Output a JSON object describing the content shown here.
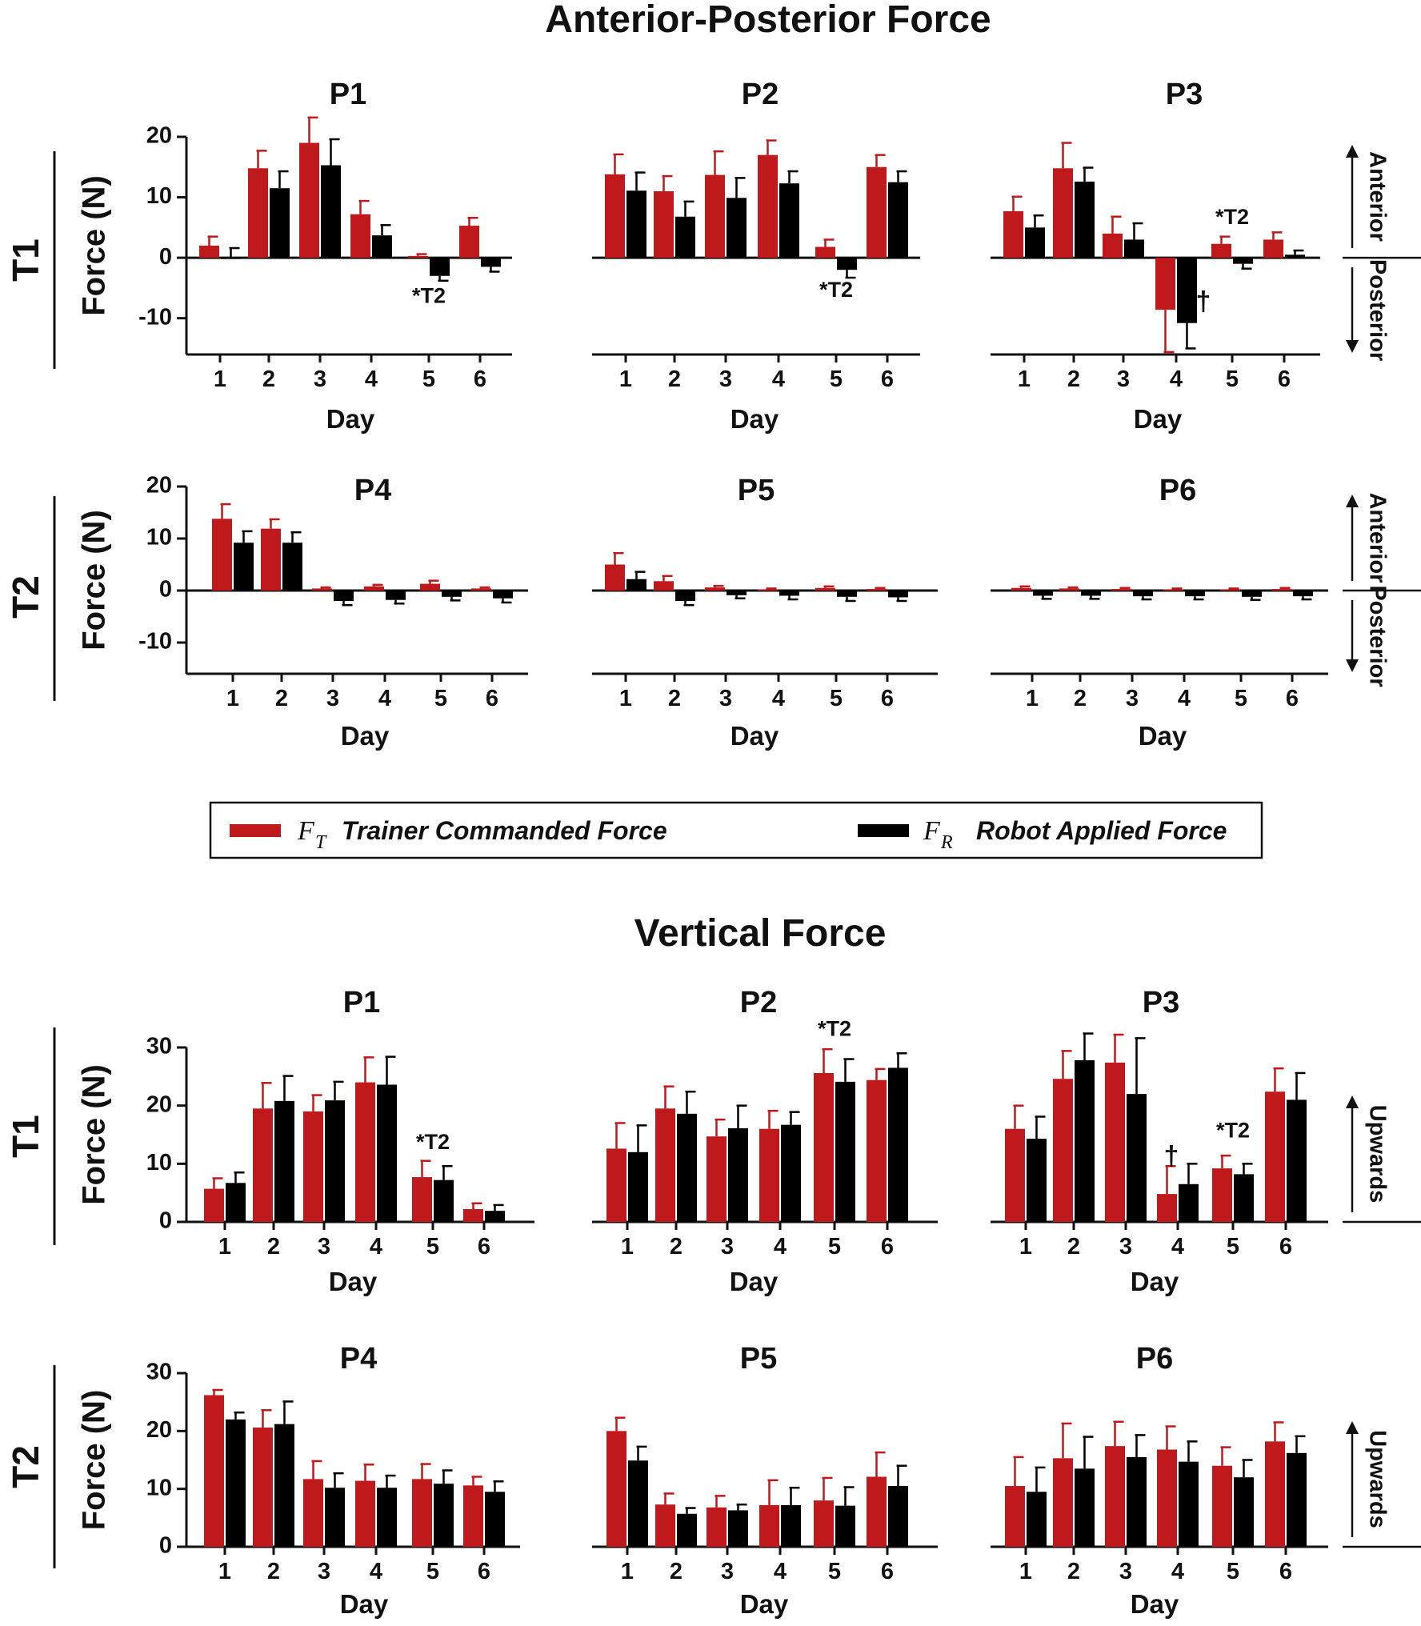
{
  "chart_data": {
    "type": "bar",
    "colors": {
      "trainer": "#c0191b",
      "robot": "#000000",
      "axis": "#111111"
    },
    "legend": {
      "trainer_symbol": "F",
      "trainer_sub": "T",
      "trainer_label": "Trainer Commanded Force",
      "robot_symbol": "F",
      "robot_sub": "R",
      "robot_label": "Robot Applied Force"
    },
    "sections": [
      {
        "title": "Anterior-Posterior Force",
        "ylim": [
          -16,
          20
        ],
        "yticks": [
          20,
          10,
          0,
          -10
        ],
        "ylabel": "Force (N)",
        "xlabel": "Day",
        "categories": [
          "1",
          "2",
          "3",
          "4",
          "5",
          "6"
        ],
        "rows": [
          {
            "label": "T1",
            "direction_up": "Anterior",
            "direction_down": "Posterior",
            "panels": [
              {
                "title": "P1",
                "trainer": [
                  2.0,
                  14.8,
                  19.0,
                  7.2,
                  0.3,
                  5.3
                ],
                "trainer_err": [
                  1.5,
                  2.9,
                  4.2,
                  2.2,
                  0.3,
                  1.3
                ],
                "robot": [
                  0.0,
                  11.5,
                  15.3,
                  3.7,
                  -3.0,
                  -1.5
                ],
                "robot_err": [
                  1.6,
                  2.8,
                  4.3,
                  1.7,
                  0.8,
                  0.8
                ],
                "annotations": [
                  {
                    "day": 5,
                    "text": "*T2",
                    "value": -6.5
                  }
                ]
              },
              {
                "title": "P2",
                "trainer": [
                  13.8,
                  11.0,
                  13.7,
                  17.0,
                  1.8,
                  15.0
                ],
                "trainer_err": [
                  3.3,
                  2.5,
                  3.9,
                  2.4,
                  1.2,
                  2.0
                ],
                "robot": [
                  11.1,
                  6.8,
                  9.9,
                  12.3,
                  -2.0,
                  12.5
                ],
                "robot_err": [
                  3.0,
                  2.5,
                  3.3,
                  2.0,
                  1.3,
                  1.8
                ],
                "annotations": [
                  {
                    "day": 5,
                    "text": "*T2",
                    "value": -5.5
                  }
                ]
              },
              {
                "title": "P3",
                "trainer": [
                  7.7,
                  14.8,
                  4.0,
                  -8.6,
                  2.3,
                  3.0
                ],
                "trainer_err": [
                  2.4,
                  4.2,
                  2.8,
                  7.0,
                  1.2,
                  1.2
                ],
                "robot": [
                  5.0,
                  12.6,
                  3.0,
                  -10.8,
                  -1.0,
                  0.5
                ],
                "robot_err": [
                  2.0,
                  2.3,
                  2.7,
                  4.2,
                  0.8,
                  0.7
                ],
                "annotations": [
                  {
                    "day": 5,
                    "text": "*T2",
                    "value": 6.5
                  },
                  {
                    "day": 4,
                    "text": "†",
                    "value": -7.5
                  }
                ]
              }
            ]
          },
          {
            "label": "T2",
            "direction_up": "Anterior",
            "direction_down": "Posterior",
            "panels": [
              {
                "title": "P4",
                "trainer": [
                  13.8,
                  11.9,
                  0.4,
                  0.8,
                  1.3,
                  0.4
                ],
                "trainer_err": [
                  2.8,
                  1.8,
                  0.2,
                  0.3,
                  0.6,
                  0.2
                ],
                "robot": [
                  9.2,
                  9.2,
                  -2.0,
                  -1.8,
                  -1.2,
                  -1.5
                ],
                "robot_err": [
                  2.2,
                  2.0,
                  0.8,
                  0.7,
                  0.7,
                  0.8
                ],
                "annotations": []
              },
              {
                "title": "P5",
                "trainer": [
                  5.0,
                  1.8,
                  0.6,
                  0.2,
                  0.5,
                  0.3
                ],
                "trainer_err": [
                  2.2,
                  1.0,
                  0.3,
                  0.2,
                  0.3,
                  0.2
                ],
                "robot": [
                  2.2,
                  -2.0,
                  -0.9,
                  -1.0,
                  -1.2,
                  -1.3
                ],
                "robot_err": [
                  1.4,
                  0.8,
                  0.6,
                  0.7,
                  0.8,
                  0.7
                ],
                "annotations": []
              },
              {
                "title": "P6",
                "trainer": [
                  0.5,
                  0.4,
                  0.3,
                  0.2,
                  0.2,
                  0.3
                ],
                "trainer_err": [
                  0.3,
                  0.2,
                  0.2,
                  0.2,
                  0.2,
                  0.2
                ],
                "robot": [
                  -1.0,
                  -1.0,
                  -1.1,
                  -1.1,
                  -1.2,
                  -1.1
                ],
                "robot_err": [
                  0.6,
                  0.6,
                  0.6,
                  0.6,
                  0.6,
                  0.6
                ],
                "annotations": []
              }
            ]
          }
        ]
      },
      {
        "title": "Vertical Force",
        "ylim": [
          0,
          30
        ],
        "yticks": [
          30,
          20,
          10,
          0
        ],
        "ylabel": "Force (N)",
        "xlabel": "Day",
        "categories": [
          "1",
          "2",
          "3",
          "4",
          "5",
          "6"
        ],
        "rows": [
          {
            "label": "T1",
            "direction_up": "Upwards",
            "panels": [
              {
                "title": "P1",
                "trainer": [
                  5.7,
                  19.5,
                  19.0,
                  24.0,
                  7.7,
                  2.2
                ],
                "trainer_err": [
                  1.8,
                  4.4,
                  2.8,
                  4.3,
                  2.8,
                  1.0
                ],
                "robot": [
                  6.7,
                  20.8,
                  20.9,
                  23.6,
                  7.2,
                  1.9
                ],
                "robot_err": [
                  1.8,
                  4.3,
                  3.2,
                  4.8,
                  2.4,
                  1.0
                ],
                "annotations": [
                  {
                    "day": 5,
                    "text": "*T2",
                    "value": 13.5
                  }
                ]
              },
              {
                "title": "P2",
                "trainer": [
                  12.6,
                  19.5,
                  14.7,
                  16.0,
                  25.6,
                  24.4
                ],
                "trainer_err": [
                  4.4,
                  3.8,
                  2.9,
                  3.1,
                  4.1,
                  1.9
                ],
                "robot": [
                  12.0,
                  18.6,
                  16.1,
                  16.7,
                  24.1,
                  26.5
                ],
                "robot_err": [
                  4.6,
                  3.8,
                  3.9,
                  2.2,
                  3.9,
                  2.5
                ],
                "annotations": [
                  {
                    "day": 5,
                    "text": "*T2",
                    "value": 33.0
                  }
                ]
              },
              {
                "title": "P3",
                "trainer": [
                  16.0,
                  24.6,
                  27.4,
                  4.8,
                  9.2,
                  22.4
                ],
                "trainer_err": [
                  4.0,
                  4.8,
                  4.8,
                  4.8,
                  2.2,
                  4.0
                ],
                "robot": [
                  14.3,
                  27.8,
                  22.0,
                  6.5,
                  8.2,
                  21.0
                ],
                "robot_err": [
                  3.8,
                  4.6,
                  9.6,
                  3.5,
                  1.8,
                  4.6
                ],
                "annotations": [
                  {
                    "day": 5,
                    "text": "*T2",
                    "value": 15.5
                  },
                  {
                    "day": 4,
                    "text": "†",
                    "value": 11.0
                  }
                ]
              }
            ]
          },
          {
            "label": "T2",
            "direction_up": "Upwards",
            "panels": [
              {
                "title": "P4",
                "trainer": [
                  26.2,
                  20.6,
                  11.7,
                  11.4,
                  11.7,
                  10.6
                ],
                "trainer_err": [
                  0.9,
                  3.0,
                  3.1,
                  2.8,
                  2.6,
                  1.5
                ],
                "robot": [
                  22.0,
                  21.2,
                  10.2,
                  10.2,
                  10.9,
                  9.5
                ],
                "robot_err": [
                  1.2,
                  3.9,
                  2.5,
                  2.1,
                  2.3,
                  1.8
                ],
                "annotations": []
              },
              {
                "title": "P5",
                "trainer": [
                  20.0,
                  7.3,
                  6.8,
                  7.2,
                  8.0,
                  12.1
                ],
                "trainer_err": [
                  2.3,
                  1.9,
                  2.0,
                  4.3,
                  3.9,
                  4.2
                ],
                "robot": [
                  14.9,
                  5.7,
                  6.3,
                  7.2,
                  7.1,
                  10.5
                ],
                "robot_err": [
                  2.4,
                  1.0,
                  1.0,
                  3.0,
                  3.2,
                  3.5
                ],
                "annotations": []
              },
              {
                "title": "P6",
                "trainer": [
                  10.5,
                  15.3,
                  17.4,
                  16.8,
                  14.0,
                  18.2
                ],
                "trainer_err": [
                  5.0,
                  6.0,
                  4.2,
                  4.0,
                  3.2,
                  3.3
                ],
                "robot": [
                  9.5,
                  13.5,
                  15.5,
                  14.7,
                  12.0,
                  16.2
                ],
                "robot_err": [
                  4.2,
                  5.5,
                  3.8,
                  3.5,
                  3.0,
                  2.9
                ],
                "annotations": []
              }
            ]
          }
        ]
      }
    ]
  }
}
